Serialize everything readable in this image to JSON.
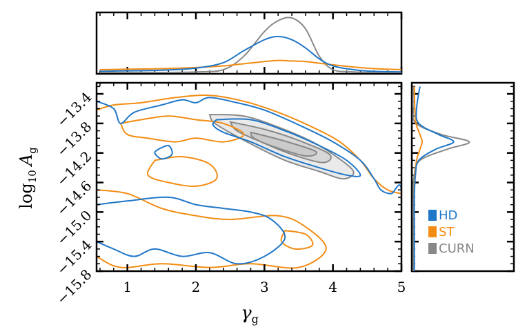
{
  "chart_data": {
    "type": "contour",
    "xlabel_base": "γ",
    "xlabel_sub": "g",
    "ylabel_prefix": "log",
    "ylabel_prefix_sub": "10",
    "ylabel_base": "A",
    "ylabel_sub": "g",
    "xlim": [
      0.55,
      5.0
    ],
    "ylim": [
      -15.8,
      -13.25
    ],
    "xticks": [
      1,
      2,
      3,
      4,
      5
    ],
    "xtick_labels": [
      "1",
      "2",
      "3",
      "4",
      "5"
    ],
    "yticks": [
      -13.4,
      -13.8,
      -14.2,
      -14.6,
      -15.0,
      -15.4,
      -15.8
    ],
    "ytick_labels": [
      "−13.4",
      "−13.8",
      "−14.2",
      "−14.6",
      "−15.0",
      "−15.4",
      "−15.8"
    ],
    "legend_position": "lower-right (right marginal panel)",
    "series": [
      {
        "name": "HD",
        "color": "#1f77c8"
      },
      {
        "name": "ST",
        "color": "#f28c13"
      },
      {
        "name": "CURN",
        "color": "#888888"
      }
    ],
    "marginal_gamma": {
      "x": [
        0.6,
        1.0,
        1.5,
        2.0,
        2.4,
        2.7,
        3.0,
        3.2,
        3.4,
        3.6,
        3.8,
        4.0,
        4.3,
        4.6,
        5.0
      ],
      "HD": [
        0.02,
        0.03,
        0.04,
        0.08,
        0.18,
        0.4,
        0.6,
        0.66,
        0.6,
        0.45,
        0.25,
        0.12,
        0.05,
        0.02,
        0.01
      ],
      "ST": [
        0.05,
        0.06,
        0.07,
        0.09,
        0.12,
        0.16,
        0.2,
        0.22,
        0.21,
        0.2,
        0.17,
        0.14,
        0.1,
        0.07,
        0.05
      ],
      "CURN": [
        0.0,
        0.0,
        0.0,
        0.01,
        0.05,
        0.3,
        0.75,
        0.95,
        1.0,
        0.8,
        0.3,
        0.05,
        0.01,
        0.0,
        0.0
      ]
    },
    "marginal_logA": {
      "y": [
        -13.3,
        -13.6,
        -13.8,
        -13.95,
        -14.05,
        -14.15,
        -14.3,
        -14.5,
        -14.8,
        -15.2,
        -15.8
      ],
      "HD": [
        0.12,
        0.06,
        0.1,
        0.45,
        0.72,
        0.4,
        0.1,
        0.04,
        0.02,
        0.02,
        0.02
      ],
      "ST": [
        0.02,
        0.03,
        0.05,
        0.12,
        0.16,
        0.12,
        0.06,
        0.03,
        0.02,
        0.02,
        0.02
      ],
      "CURN": [
        0.0,
        0.0,
        0.05,
        0.5,
        1.0,
        0.6,
        0.12,
        0.02,
        0.0,
        0.0,
        0.0
      ]
    },
    "contours": {
      "CURN": [
        [
          [
            2.2,
            -13.68
          ],
          [
            2.7,
            -13.7
          ],
          [
            3.2,
            -13.85
          ],
          [
            3.7,
            -14.05
          ],
          [
            4.05,
            -14.25
          ],
          [
            4.3,
            -14.45
          ],
          [
            4.15,
            -14.55
          ],
          [
            3.8,
            -14.45
          ],
          [
            3.3,
            -14.3
          ],
          [
            2.85,
            -14.1
          ],
          [
            2.45,
            -13.9
          ],
          [
            2.25,
            -13.78
          ],
          [
            2.2,
            -13.68
          ]
        ],
        [
          [
            2.5,
            -13.78
          ],
          [
            3.0,
            -13.88
          ],
          [
            3.5,
            -14.03
          ],
          [
            3.95,
            -14.22
          ],
          [
            3.85,
            -14.33
          ],
          [
            3.4,
            -14.22
          ],
          [
            2.95,
            -14.05
          ],
          [
            2.6,
            -13.9
          ],
          [
            2.5,
            -13.78
          ]
        ],
        [
          [
            2.8,
            -13.92
          ],
          [
            3.3,
            -14.04
          ],
          [
            3.75,
            -14.18
          ],
          [
            3.6,
            -14.24
          ],
          [
            3.15,
            -14.12
          ],
          [
            2.85,
            -14.0
          ],
          [
            2.8,
            -13.92
          ]
        ]
      ],
      "HD": [
        [
          [
            0.55,
            -13.5
          ],
          [
            0.8,
            -13.6
          ],
          [
            0.9,
            -13.8
          ],
          [
            1.1,
            -13.65
          ],
          [
            1.5,
            -13.55
          ],
          [
            1.8,
            -13.48
          ],
          [
            2.0,
            -13.52
          ],
          [
            2.2,
            -13.45
          ],
          [
            2.6,
            -13.52
          ],
          [
            3.0,
            -13.62
          ],
          [
            3.5,
            -13.82
          ],
          [
            4.0,
            -14.05
          ],
          [
            4.4,
            -14.3
          ],
          [
            4.6,
            -14.55
          ],
          [
            4.7,
            -14.7
          ],
          [
            4.85,
            -14.75
          ],
          [
            5.0,
            -14.7
          ],
          [
            5.0,
            -15.8
          ],
          [
            0.55,
            -15.8
          ]
        ],
        [
          [
            2.3,
            -13.75
          ],
          [
            2.8,
            -13.75
          ],
          [
            3.3,
            -13.9
          ],
          [
            3.8,
            -14.1
          ],
          [
            4.2,
            -14.3
          ],
          [
            4.4,
            -14.5
          ],
          [
            4.2,
            -14.5
          ],
          [
            3.8,
            -14.4
          ],
          [
            3.3,
            -14.25
          ],
          [
            2.8,
            -14.05
          ],
          [
            2.4,
            -13.92
          ],
          [
            2.25,
            -13.82
          ],
          [
            2.3,
            -13.75
          ]
        ],
        [
          [
            1.45,
            -14.15
          ],
          [
            1.6,
            -14.1
          ],
          [
            1.65,
            -14.22
          ],
          [
            1.5,
            -14.28
          ],
          [
            1.4,
            -14.2
          ],
          [
            1.45,
            -14.15
          ]
        ],
        [
          [
            0.55,
            -14.9
          ],
          [
            1.0,
            -14.85
          ],
          [
            1.6,
            -14.8
          ],
          [
            2.0,
            -14.9
          ],
          [
            2.4,
            -14.95
          ],
          [
            2.8,
            -15.0
          ],
          [
            3.1,
            -15.1
          ],
          [
            3.3,
            -15.35
          ],
          [
            3.0,
            -15.6
          ],
          [
            2.6,
            -15.7
          ],
          [
            2.2,
            -15.55
          ],
          [
            1.8,
            -15.6
          ],
          [
            1.4,
            -15.5
          ],
          [
            1.1,
            -15.6
          ],
          [
            0.8,
            -15.5
          ],
          [
            0.55,
            -15.4
          ]
        ]
      ],
      "ST": [
        [
          [
            0.55,
            -13.62
          ],
          [
            0.8,
            -13.55
          ],
          [
            1.2,
            -13.52
          ],
          [
            1.7,
            -13.45
          ],
          [
            2.2,
            -13.42
          ],
          [
            2.7,
            -13.5
          ],
          [
            3.2,
            -13.65
          ],
          [
            3.7,
            -13.85
          ],
          [
            4.1,
            -14.05
          ],
          [
            4.4,
            -14.3
          ],
          [
            4.6,
            -14.55
          ],
          [
            4.8,
            -14.7
          ],
          [
            5.0,
            -14.75
          ]
        ],
        [
          [
            0.9,
            -13.8
          ],
          [
            1.2,
            -13.75
          ],
          [
            1.6,
            -13.7
          ],
          [
            2.0,
            -13.75
          ],
          [
            2.4,
            -13.8
          ],
          [
            2.7,
            -13.95
          ],
          [
            2.4,
            -14.05
          ],
          [
            2.0,
            -14.0
          ],
          [
            1.7,
            -14.05
          ],
          [
            1.3,
            -14.0
          ],
          [
            1.0,
            -13.95
          ],
          [
            0.9,
            -13.8
          ]
        ],
        [
          [
            1.4,
            -14.3
          ],
          [
            1.8,
            -14.25
          ],
          [
            2.2,
            -14.35
          ],
          [
            2.3,
            -14.55
          ],
          [
            2.0,
            -14.65
          ],
          [
            1.6,
            -14.6
          ],
          [
            1.3,
            -14.5
          ],
          [
            1.4,
            -14.3
          ]
        ],
        [
          [
            0.55,
            -14.7
          ],
          [
            1.0,
            -14.75
          ],
          [
            1.5,
            -14.95
          ],
          [
            2.0,
            -15.05
          ],
          [
            2.5,
            -15.1
          ],
          [
            3.2,
            -15.05
          ],
          [
            3.6,
            -15.2
          ],
          [
            3.9,
            -15.5
          ],
          [
            3.5,
            -15.75
          ],
          [
            2.8,
            -15.7
          ],
          [
            2.2,
            -15.75
          ],
          [
            1.5,
            -15.7
          ],
          [
            0.9,
            -15.75
          ],
          [
            0.55,
            -15.6
          ]
        ],
        [
          [
            3.3,
            -15.25
          ],
          [
            3.6,
            -15.3
          ],
          [
            3.7,
            -15.45
          ],
          [
            3.45,
            -15.5
          ],
          [
            3.25,
            -15.4
          ],
          [
            3.3,
            -15.25
          ]
        ]
      ]
    }
  }
}
